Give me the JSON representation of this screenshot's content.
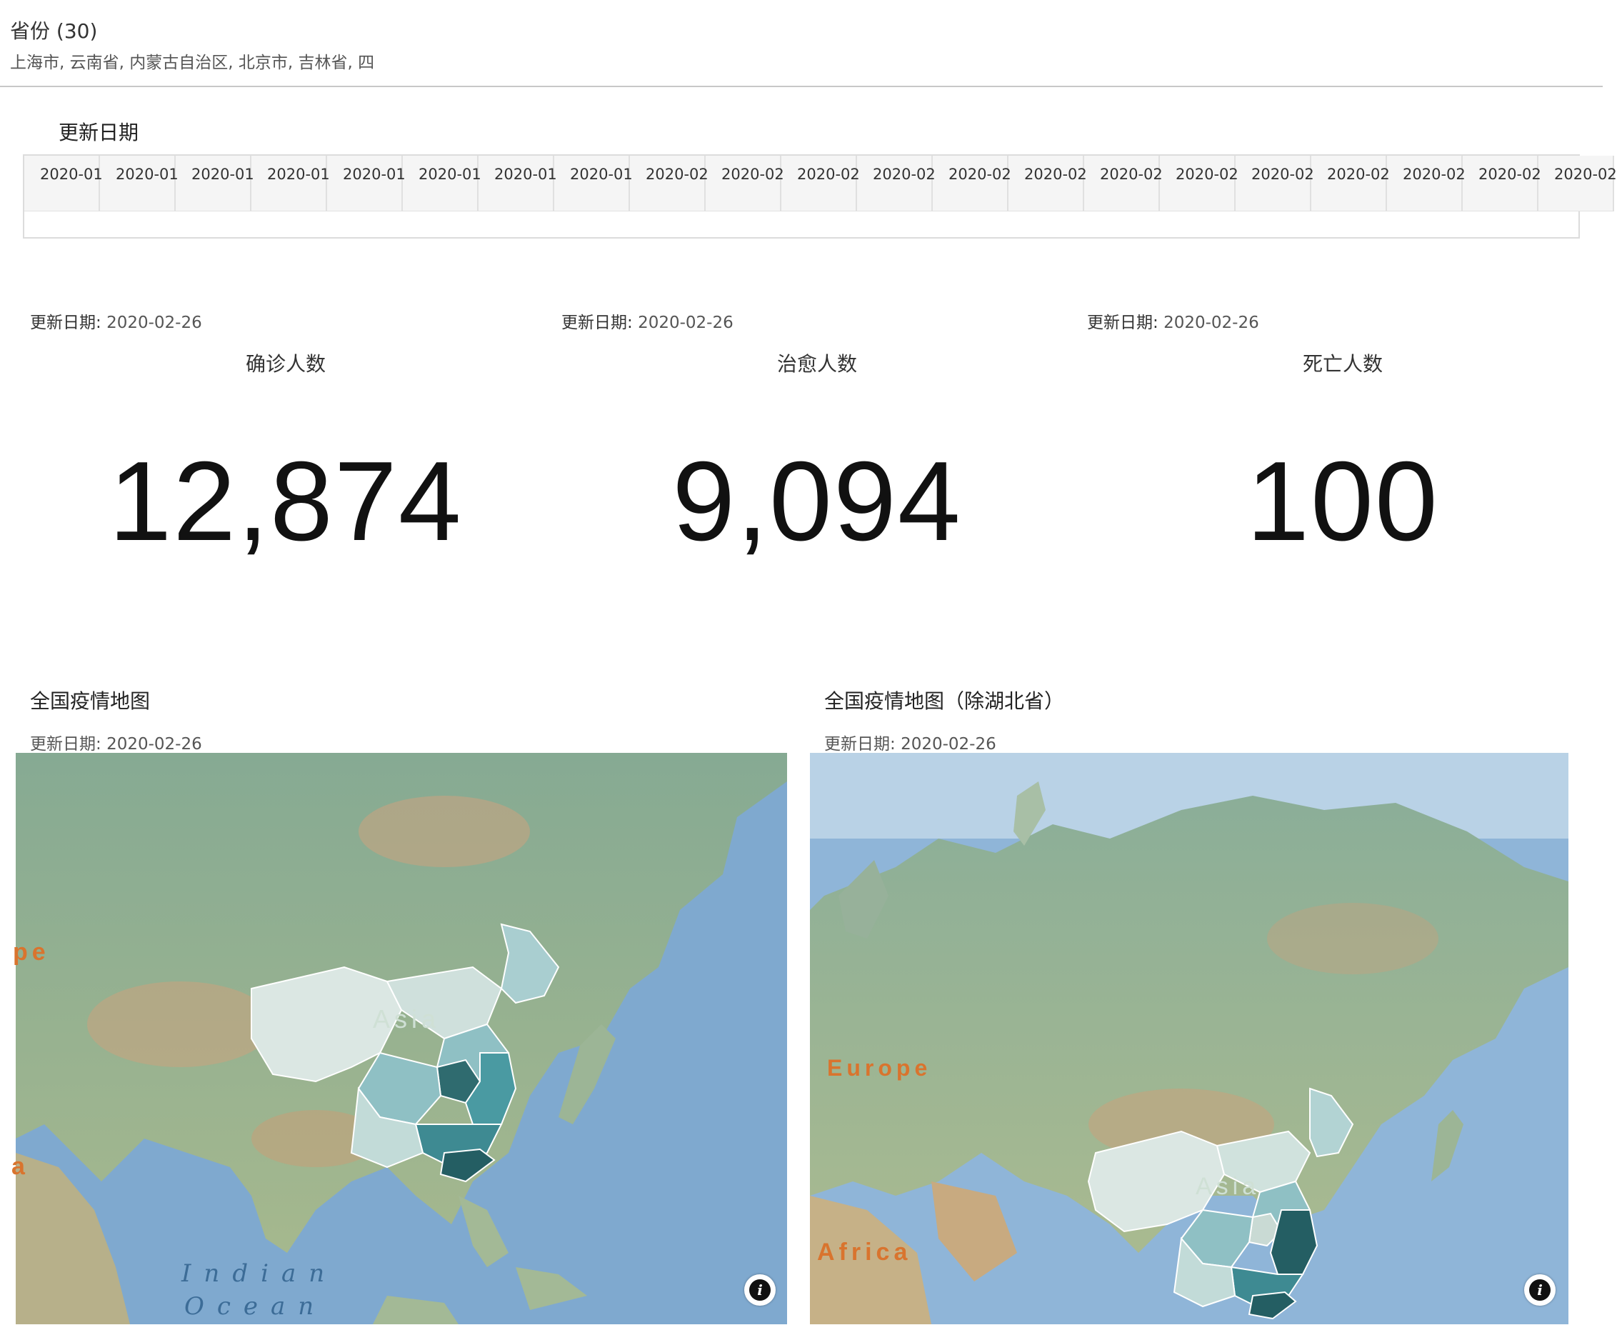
{
  "filter": {
    "title": "省份 (30)",
    "selected_values": "上海市, 云南省, 内蒙古自治区, 北京市, 吉林省, 四"
  },
  "date_slider": {
    "title": "更新日期",
    "cells": [
      "2020-01",
      "2020-01",
      "2020-01",
      "2020-01",
      "2020-01",
      "2020-01",
      "2020-01",
      "2020-01",
      "2020-02",
      "2020-02",
      "2020-02",
      "2020-02",
      "2020-02",
      "2020-02",
      "2020-02",
      "2020-02",
      "2020-02",
      "2020-02",
      "2020-02",
      "2020-02",
      "2020-02"
    ]
  },
  "kpis": [
    {
      "date_label": "更新日期:",
      "date_value": "2020-02-26",
      "title": "确诊人数",
      "value": "12,874"
    },
    {
      "date_label": "更新日期:",
      "date_value": "2020-02-26",
      "title": "治愈人数",
      "value": "9,094"
    },
    {
      "date_label": "更新日期:",
      "date_value": "2020-02-26",
      "title": "死亡人数",
      "value": "100"
    }
  ],
  "maps": [
    {
      "title": "全国疫情地图",
      "date_label": "更新日期:",
      "date_value": "2020-02-26",
      "labels": {
        "europe": "pe",
        "africa": "a",
        "asia": "Asia",
        "ocean_line1": "Indian",
        "ocean_line2": "Ocean"
      }
    },
    {
      "title": "全国疫情地图（除湖北省）",
      "date_label": "更新日期:",
      "date_value": "2020-02-26",
      "labels": {
        "europe": "Europe",
        "africa": "Africa",
        "asia": "Asia"
      }
    }
  ],
  "colors": {
    "choropleth_light": "#dbe7e3",
    "choropleth_mid": "#8fc0c4",
    "choropleth_strong": "#4a9aa2",
    "choropleth_darkest": "#245e63",
    "land": "#8fae98",
    "ocean": "#7fa9cf"
  },
  "icons": {
    "info": "info-icon"
  }
}
